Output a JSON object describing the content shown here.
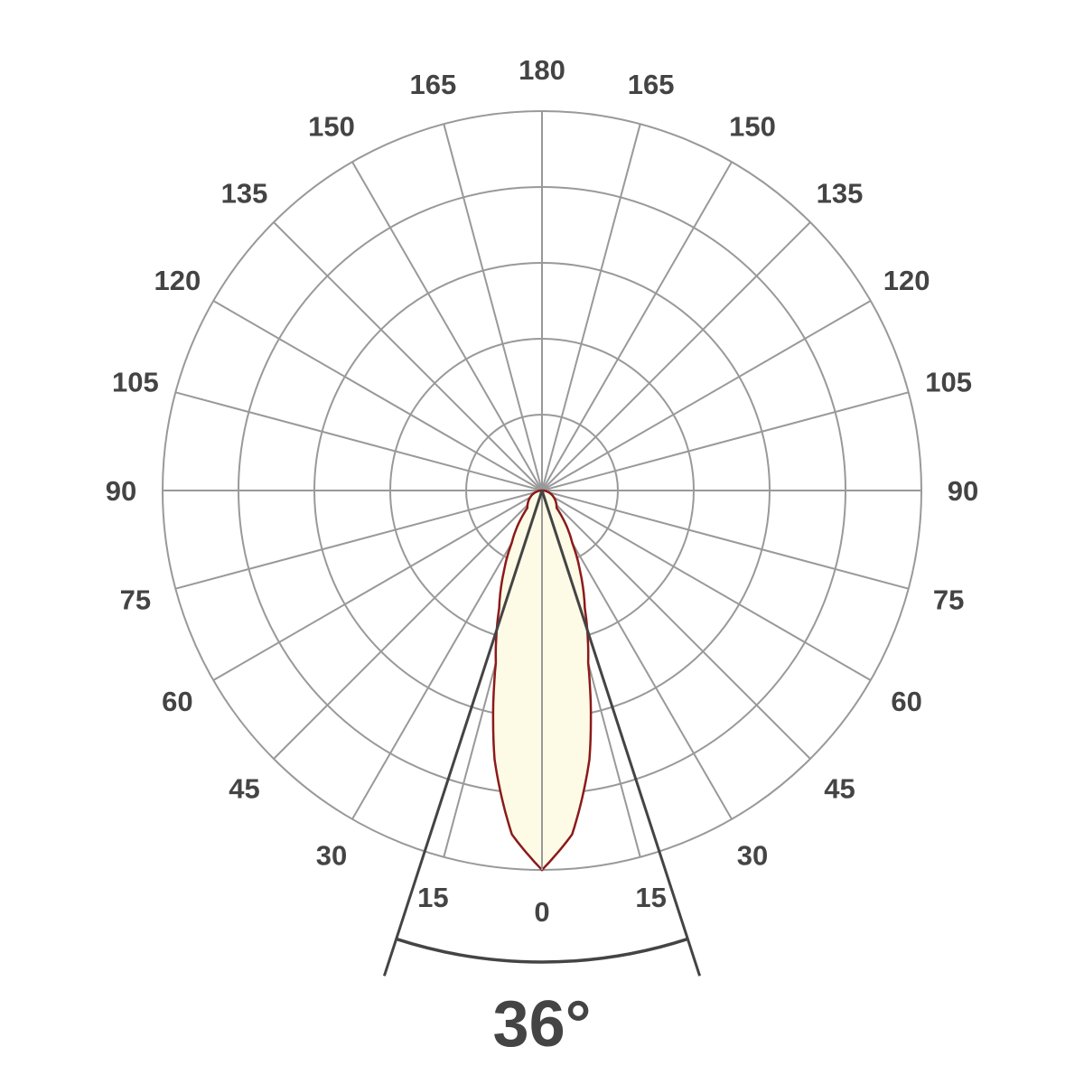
{
  "chart_data": {
    "type": "polar",
    "angle_step": 15,
    "ring_count": 5,
    "angle_labels": [
      "0",
      "15",
      "30",
      "45",
      "60",
      "75",
      "90",
      "105",
      "120",
      "135",
      "150",
      "165",
      "180"
    ],
    "series": [
      {
        "angles": [
          0,
          5,
          10,
          15,
          20,
          25,
          30,
          40,
          90
        ],
        "values": [
          1.0,
          0.91,
          0.72,
          0.47,
          0.33,
          0.24,
          0.16,
          0.06,
          0.0
        ]
      }
    ],
    "beam_angle": 36,
    "beam_label": "36°",
    "colors": {
      "curve": "#8b1a1a",
      "fill": "#fdfbe6",
      "grid": "#999999",
      "beam": "#444444",
      "text": "#444444"
    }
  }
}
